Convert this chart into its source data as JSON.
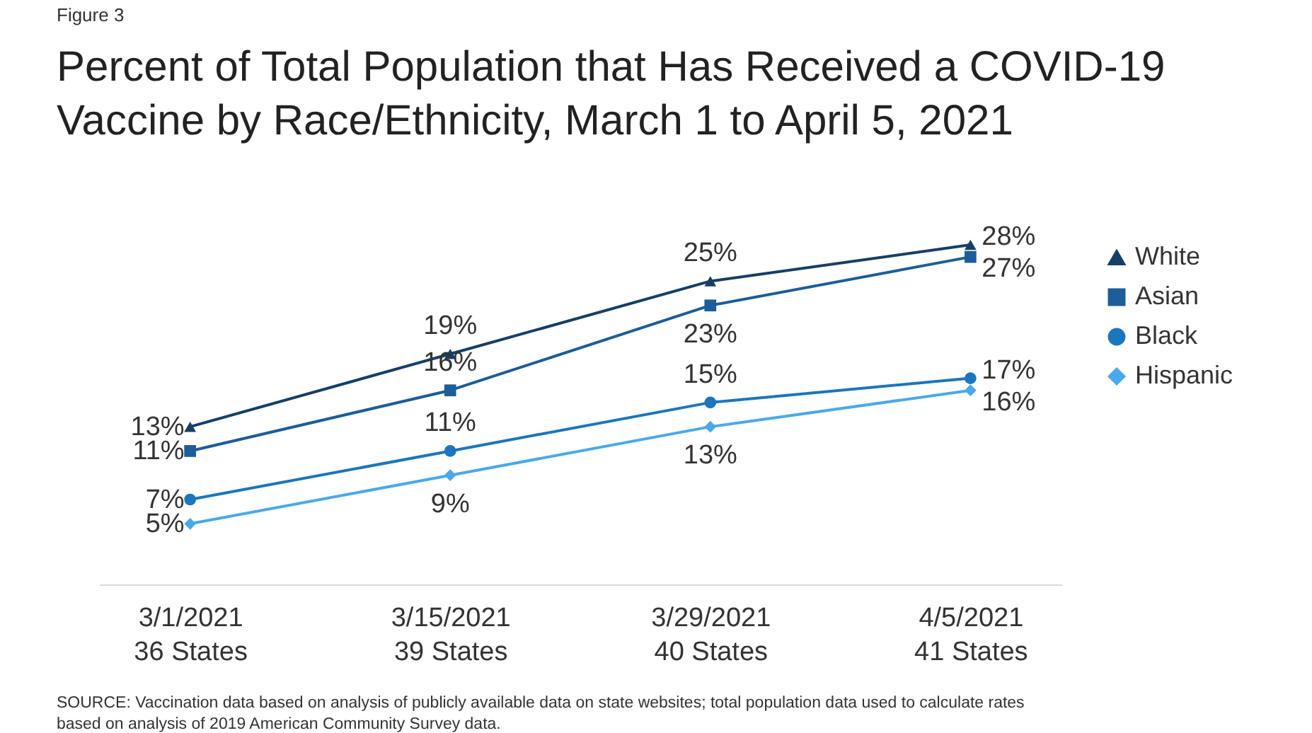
{
  "chart_data": {
    "type": "line",
    "title": "Percent of Total Population that Has Received a COVID-19 Vaccine by Race/Ethnicity, March 1 to April 5, 2021",
    "categories": [
      "3/1/2021\n36 States",
      "3/15/2021\n39 States",
      "3/29/2021\n40 States",
      "4/5/2021\n41 States"
    ],
    "series": [
      {
        "name": "White",
        "color": "#173f66",
        "marker": "triangle",
        "values": [
          13,
          19,
          25,
          28
        ],
        "value_labels": [
          "13%",
          "19%",
          "25%",
          "28%"
        ]
      },
      {
        "name": "Asian",
        "color": "#1d5d99",
        "marker": "square",
        "values": [
          11,
          16,
          23,
          27
        ],
        "value_labels": [
          "11%",
          "16%",
          "23%",
          "27%"
        ]
      },
      {
        "name": "Black",
        "color": "#1b76bd",
        "marker": "circle",
        "values": [
          7,
          11,
          15,
          17
        ],
        "value_labels": [
          "7%",
          "11%",
          "15%",
          "17%"
        ]
      },
      {
        "name": "Hispanic",
        "color": "#4aa9ea",
        "marker": "diamond",
        "values": [
          5,
          9,
          13,
          16
        ],
        "value_labels": [
          "5%",
          "9%",
          "13%",
          "16%"
        ]
      }
    ],
    "annotations": [
      "Figure 3",
      "SOURCE: Vaccination data based on analysis of publicly available data on state websites; total population data used to calculate rates based on analysis of 2019 American Community Survey data."
    ],
    "legend": "right",
    "grid": false,
    "line_style": "solid"
  }
}
